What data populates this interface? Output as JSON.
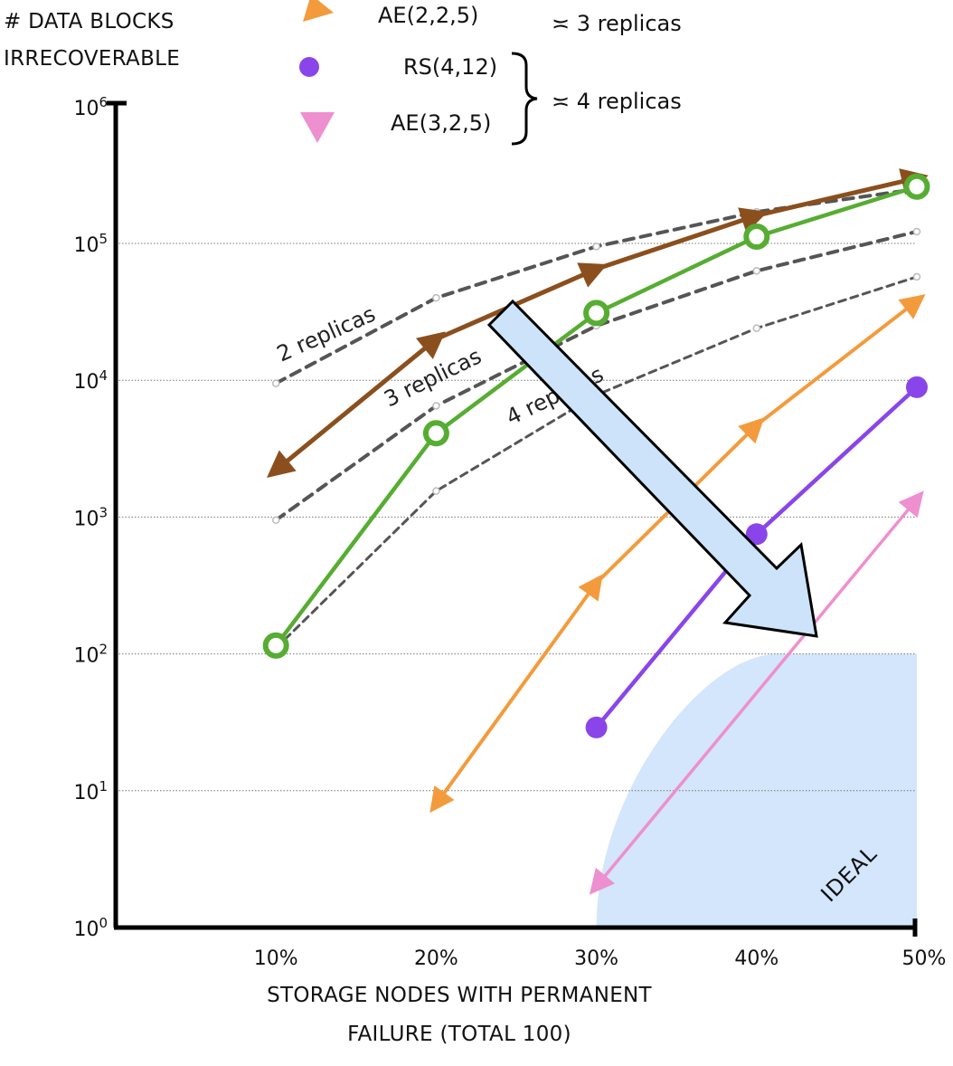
{
  "chart_data": {
    "type": "line",
    "ylabel": "# DATA BLOCKS IRRECOVERABLE",
    "ylabel_lines": [
      "# DATA BLOCKS",
      "IRRECOVERABLE"
    ],
    "xlabel": "STORAGE NODES WITH PERMANENT FAILURE (TOTAL 100)",
    "xlabel_lines": [
      "STORAGE NODES WITH PERMANENT",
      "FAILURE (TOTAL 100)"
    ],
    "yscale": "log",
    "ylim": [
      1,
      1000000
    ],
    "xlim": [
      0,
      50
    ],
    "x_ticks": [
      10,
      20,
      30,
      40,
      50
    ],
    "x_tick_labels": [
      "10%",
      "20%",
      "30%",
      "40%",
      "50%"
    ],
    "y_ticks": [
      {
        "base": "10",
        "exp": "0",
        "value": 1
      },
      {
        "base": "10",
        "exp": "1",
        "value": 10
      },
      {
        "base": "10",
        "exp": "2",
        "value": 100
      },
      {
        "base": "10",
        "exp": "3",
        "value": 1000
      },
      {
        "base": "10",
        "exp": "4",
        "value": 10000
      },
      {
        "base": "10",
        "exp": "5",
        "value": 100000
      },
      {
        "base": "10",
        "exp": "6",
        "value": 1000000
      }
    ],
    "grid": "horizontal-dotted",
    "legend": {
      "placement": "top",
      "items": [
        {
          "label": "AE(2,2,5)",
          "marker": "triangle-up",
          "color": "#f39b3c"
        },
        {
          "label": "RS(4,12)",
          "marker": "circle",
          "color": "#8a45ea"
        },
        {
          "label": "AE(3,2,5)",
          "marker": "triangle-down",
          "color": "#ee8fcf"
        }
      ],
      "notes": [
        {
          "text": "≍ 3 replicas"
        },
        {
          "text": "≍ 4 replicas"
        }
      ]
    },
    "series": [
      {
        "name": "",
        "style": "brown-arrow",
        "color": "#8b4f1e",
        "x": [
          10,
          20,
          30,
          40,
          50
        ],
        "y": [
          2200,
          20000,
          65000,
          160000,
          300000
        ]
      },
      {
        "name": "",
        "style": "green-ring",
        "color": "#56ad32",
        "x": [
          10,
          20,
          30,
          40,
          50
        ],
        "y": [
          115,
          4100,
          31000,
          112000,
          260000
        ]
      },
      {
        "name": "2 replicas",
        "style": "dashed",
        "color": "#555555",
        "x": [
          10,
          20,
          30,
          40,
          50
        ],
        "y": [
          9500,
          40000,
          95000,
          170000,
          250000
        ]
      },
      {
        "name": "3 replicas",
        "style": "dashed",
        "color": "#555555",
        "x": [
          10,
          20,
          30,
          40,
          50
        ],
        "y": [
          950,
          6500,
          25000,
          63000,
          122000
        ]
      },
      {
        "name": "4 replicas",
        "style": "dashed-thin",
        "color": "#555555",
        "x": [
          10,
          20,
          30,
          40,
          50
        ],
        "y": [
          110,
          1550,
          7800,
          24000,
          57000
        ]
      },
      {
        "name": "AE(2,2,5)",
        "style": "orange-arrow",
        "color": "#f39b3c",
        "x": [
          20,
          30,
          40,
          50
        ],
        "y": [
          8,
          330,
          4700,
          38000
        ]
      },
      {
        "name": "RS(4,12)",
        "style": "purple-dot",
        "color": "#8a45ea",
        "x": [
          30,
          40,
          50
        ],
        "y": [
          29,
          750,
          8900
        ]
      },
      {
        "name": "AE(3,2,5)",
        "style": "pink-triangle",
        "color": "#ee8fcf",
        "x": [
          30,
          50
        ],
        "y": [
          2,
          1350
        ]
      }
    ],
    "annotations": [
      {
        "text": "IDEAL",
        "region": "x 30%-50%, y 10^0-10^2"
      }
    ]
  }
}
